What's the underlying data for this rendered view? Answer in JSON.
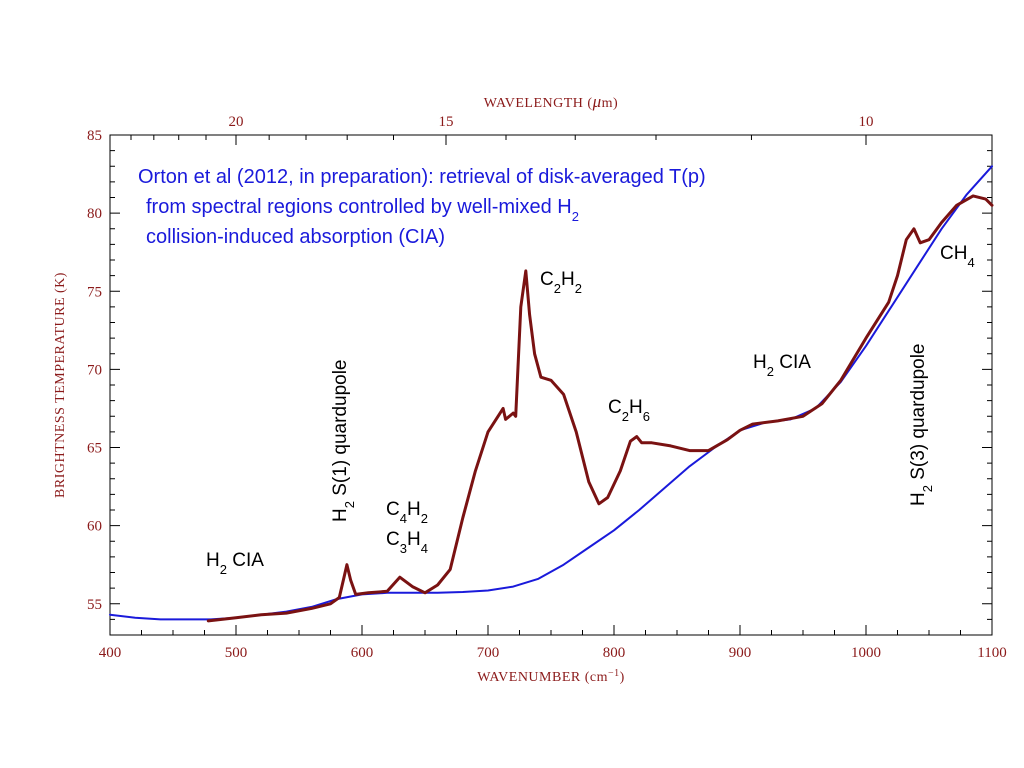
{
  "chart_data": {
    "type": "line",
    "title": "",
    "xlabel": "WAVENUMBER",
    "xlabel_unit_base": "(cm",
    "xlabel_unit_sup": "−1",
    "xlabel_unit_close": ")",
    "ylabel": "BRIGHTNESS TEMPERATURE (K)",
    "top_xlabel": "WAVELENGTH",
    "top_xlabel_unit_open": "(",
    "top_xlabel_unit_mu": "μ",
    "top_xlabel_unit_rest": "m)",
    "xlim": [
      400,
      1100
    ],
    "ylim": [
      53,
      85
    ],
    "x_ticks": [
      "400",
      "500",
      "600",
      "700",
      "800",
      "900",
      "1000",
      "1100"
    ],
    "y_ticks": [
      "55",
      "60",
      "65",
      "70",
      "75",
      "80",
      "85"
    ],
    "top_ticks": [
      {
        "label": "20",
        "wavelength_um": 20
      },
      {
        "label": "15",
        "wavelength_um": 15
      },
      {
        "label": "10",
        "wavelength_um": 10
      }
    ],
    "grid": false,
    "series": [
      {
        "color": "#1a1adb",
        "points": [
          [
            400,
            54.3
          ],
          [
            420,
            54.1
          ],
          [
            440,
            54.0
          ],
          [
            460,
            54.0
          ],
          [
            480,
            54.0
          ],
          [
            500,
            54.1
          ],
          [
            520,
            54.3
          ],
          [
            540,
            54.5
          ],
          [
            560,
            54.8
          ],
          [
            580,
            55.3
          ],
          [
            600,
            55.6
          ],
          [
            620,
            55.7
          ],
          [
            640,
            55.7
          ],
          [
            660,
            55.7
          ],
          [
            680,
            55.75
          ],
          [
            700,
            55.85
          ],
          [
            720,
            56.1
          ],
          [
            740,
            56.6
          ],
          [
            760,
            57.5
          ],
          [
            780,
            58.6
          ],
          [
            800,
            59.7
          ],
          [
            820,
            61.0
          ],
          [
            840,
            62.4
          ],
          [
            860,
            63.8
          ],
          [
            880,
            65.0
          ],
          [
            900,
            66.1
          ],
          [
            920,
            66.6
          ],
          [
            940,
            66.8
          ],
          [
            960,
            67.5
          ],
          [
            980,
            69.2
          ],
          [
            1000,
            71.5
          ],
          [
            1020,
            74.0
          ],
          [
            1040,
            76.5
          ],
          [
            1060,
            79.0
          ],
          [
            1080,
            81.2
          ],
          [
            1100,
            83.0
          ]
        ]
      },
      {
        "color": "#7a1212",
        "points": [
          [
            478,
            53.9
          ],
          [
            500,
            54.1
          ],
          [
            520,
            54.3
          ],
          [
            540,
            54.4
          ],
          [
            560,
            54.7
          ],
          [
            575,
            55.0
          ],
          [
            582,
            55.4
          ],
          [
            586,
            56.8
          ],
          [
            588,
            57.5
          ],
          [
            591,
            56.5
          ],
          [
            595,
            55.6
          ],
          [
            605,
            55.7
          ],
          [
            620,
            55.8
          ],
          [
            630,
            56.7
          ],
          [
            640,
            56.1
          ],
          [
            650,
            55.7
          ],
          [
            660,
            56.2
          ],
          [
            670,
            57.2
          ],
          [
            680,
            60.5
          ],
          [
            690,
            63.5
          ],
          [
            700,
            66.0
          ],
          [
            712,
            67.5
          ],
          [
            714,
            66.8
          ],
          [
            720,
            67.2
          ],
          [
            722,
            67.0
          ],
          [
            726,
            74.0
          ],
          [
            730,
            76.3
          ],
          [
            733,
            73.5
          ],
          [
            737,
            71.0
          ],
          [
            742,
            69.5
          ],
          [
            750,
            69.3
          ],
          [
            760,
            68.4
          ],
          [
            770,
            66.0
          ],
          [
            780,
            62.8
          ],
          [
            788,
            61.4
          ],
          [
            795,
            61.8
          ],
          [
            805,
            63.5
          ],
          [
            813,
            65.4
          ],
          [
            818,
            65.7
          ],
          [
            822,
            65.3
          ],
          [
            830,
            65.3
          ],
          [
            845,
            65.1
          ],
          [
            860,
            64.8
          ],
          [
            875,
            64.8
          ],
          [
            890,
            65.5
          ],
          [
            900,
            66.1
          ],
          [
            910,
            66.5
          ],
          [
            930,
            66.7
          ],
          [
            950,
            67.0
          ],
          [
            965,
            67.8
          ],
          [
            980,
            69.3
          ],
          [
            1000,
            72.0
          ],
          [
            1018,
            74.3
          ],
          [
            1025,
            76.0
          ],
          [
            1032,
            78.3
          ],
          [
            1038,
            79.0
          ],
          [
            1043,
            78.1
          ],
          [
            1050,
            78.3
          ],
          [
            1060,
            79.4
          ],
          [
            1072,
            80.5
          ],
          [
            1085,
            81.1
          ],
          [
            1095,
            80.9
          ],
          [
            1100,
            80.5
          ]
        ]
      }
    ],
    "annotations": {
      "note_line1": "Orton et al (2012, in preparation): retrieval of disk-averaged T(p)",
      "note_line2": "from spectral regions controlled by well-mixed H",
      "note_line2_sub": "2",
      "note_line3": "collision-induced absorption  (CIA)",
      "h2cia_left_h": "H",
      "h2cia_left_sub": "2",
      "h2cia_left_rest": " CIA",
      "s1_h": "H",
      "s1_sub": "2",
      "s1_rest": " S(1) quardupole",
      "c4h2_c": "C",
      "c4h2_s1": "4",
      "c4h2_h": "H",
      "c4h2_s2": "2",
      "c3h4_c": "C",
      "c3h4_s1": "3",
      "c3h4_h": "H",
      "c3h4_s2": "4",
      "c2h2_c": "C",
      "c2h2_s1": "2",
      "c2h2_h": "H",
      "c2h2_s2": "2",
      "c2h6_c": "C",
      "c2h6_s1": "2",
      "c2h6_h": "H",
      "c2h6_s2": "6",
      "h2cia_right_h": "H",
      "h2cia_right_sub": "2",
      "h2cia_right_rest": " CIA",
      "s3_h": "H",
      "s3_sub": "2",
      "s3_rest": " S(3) quardupole",
      "ch4_main": "CH",
      "ch4_sub": "4"
    }
  }
}
